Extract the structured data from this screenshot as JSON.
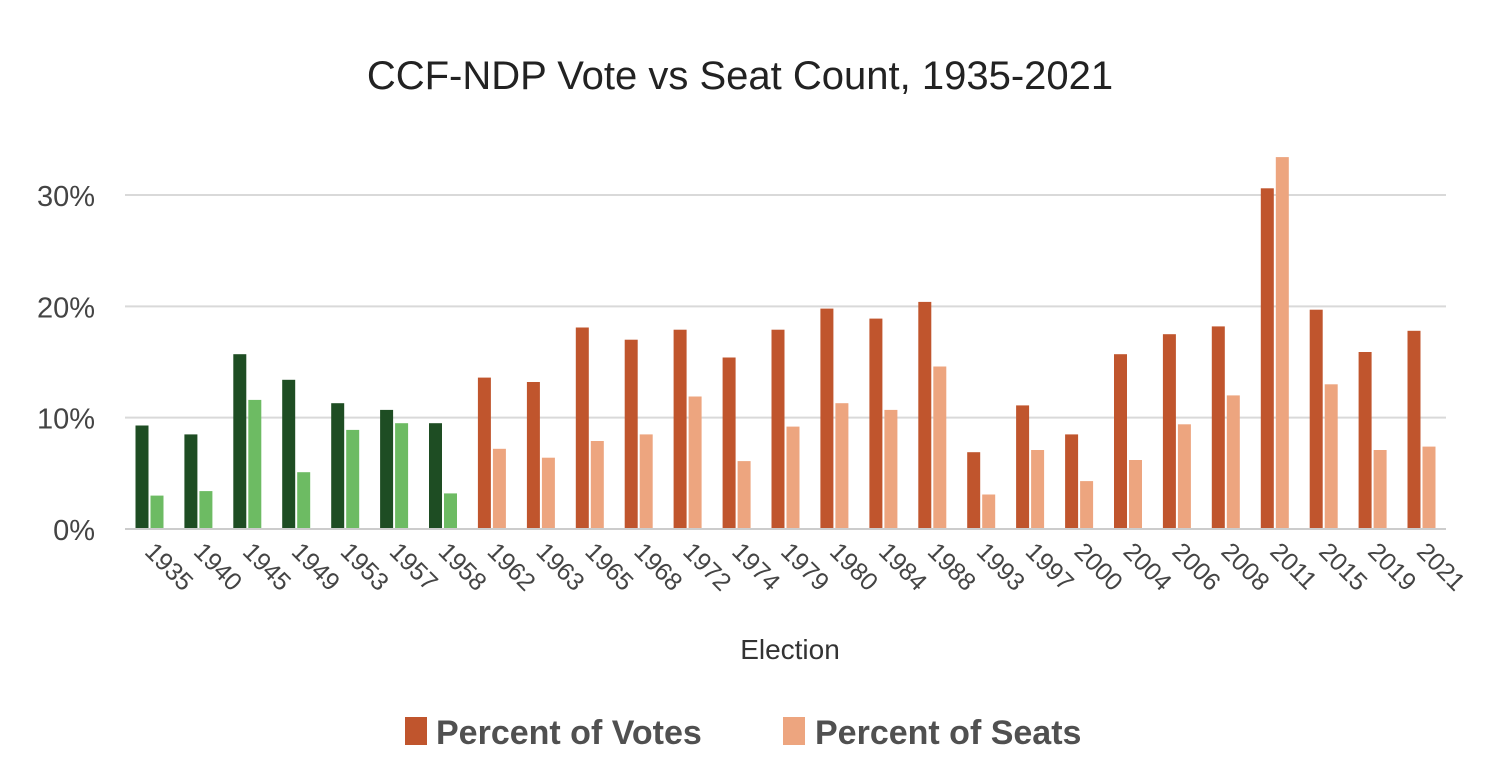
{
  "chart_data": {
    "type": "bar",
    "title": "CCF-NDP Vote vs Seat Count, 1935-2021",
    "xlabel": "Election",
    "ylabel": "",
    "ylim": [
      0,
      35
    ],
    "yticks": [
      "0%",
      "10%",
      "20%",
      "30%"
    ],
    "ytick_values": [
      0,
      10,
      20,
      30
    ],
    "grid": true,
    "legend_position": "bottom",
    "categories": [
      "1935",
      "1940",
      "1945",
      "1949",
      "1953",
      "1957",
      "1958",
      "1962",
      "1963",
      "1965",
      "1968",
      "1972",
      "1974",
      "1979",
      "1980",
      "1984",
      "1988",
      "1993",
      "1997",
      "2000",
      "2004",
      "2006",
      "2008",
      "2011",
      "2015",
      "2019",
      "2021"
    ],
    "series": [
      {
        "name": "Percent of Votes",
        "values": [
          9.3,
          8.5,
          15.7,
          13.4,
          11.3,
          10.7,
          9.5,
          13.6,
          13.2,
          18.1,
          17.0,
          17.9,
          15.4,
          17.9,
          19.8,
          18.9,
          20.4,
          6.9,
          11.1,
          8.5,
          15.7,
          17.5,
          18.2,
          30.6,
          19.7,
          15.9,
          17.8
        ]
      },
      {
        "name": "Percent of Seats",
        "values": [
          3.0,
          3.4,
          11.6,
          5.1,
          8.9,
          9.5,
          3.2,
          7.2,
          6.4,
          7.9,
          8.5,
          11.9,
          6.1,
          9.2,
          11.3,
          10.7,
          14.6,
          3.1,
          7.1,
          4.3,
          6.2,
          9.4,
          12.0,
          33.4,
          13.0,
          7.1,
          7.4
        ]
      }
    ],
    "colors": {
      "ccf_votes": "#1e4d23",
      "ccf_seats": "#6dbb63",
      "ndp_votes": "#c0552d",
      "ndp_seats": "#eda57f"
    },
    "ccf_era_count": 7
  }
}
